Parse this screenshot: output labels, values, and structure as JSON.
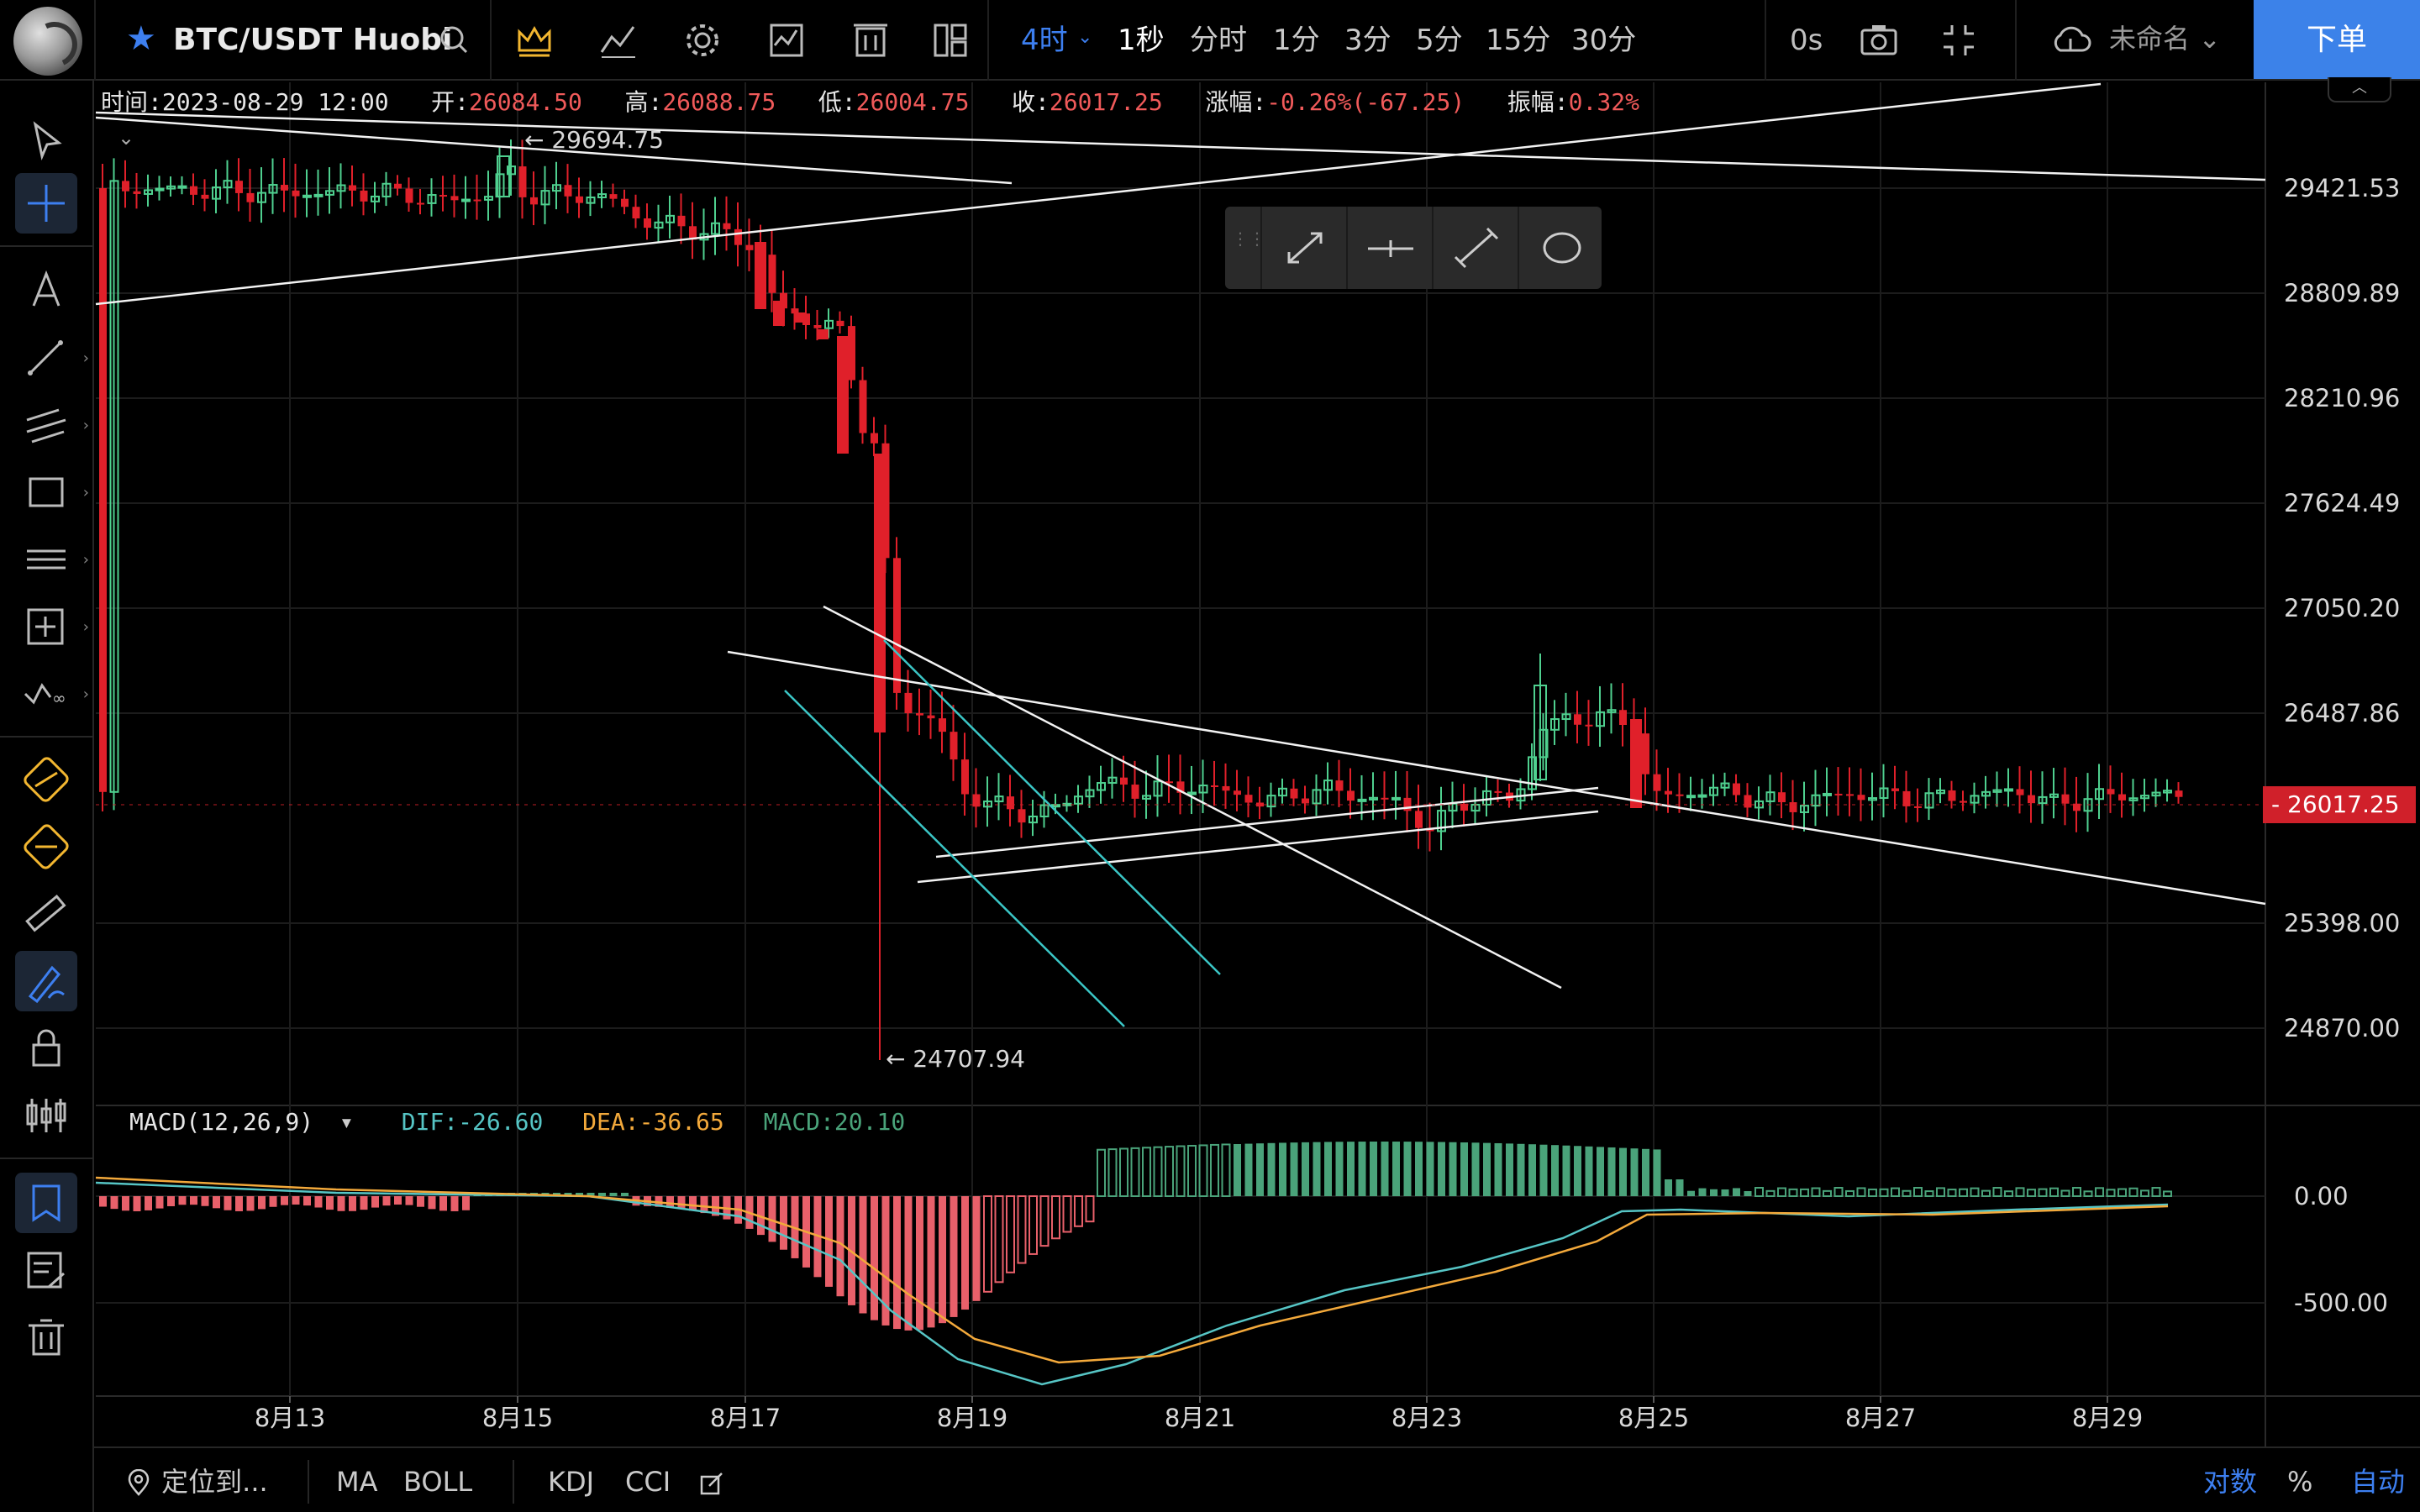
{
  "header": {
    "symbol": "BTC/USDT Huobi",
    "intervals": [
      {
        "label": "4时",
        "state": "active"
      },
      {
        "label": "1秒",
        "state": "bold"
      },
      {
        "label": "分时",
        "state": ""
      },
      {
        "label": "1分",
        "state": ""
      },
      {
        "label": "3分",
        "state": ""
      },
      {
        "label": "5分",
        "state": ""
      },
      {
        "label": "15分",
        "state": ""
      },
      {
        "label": "30分",
        "state": ""
      }
    ],
    "seconds_counter": "0s",
    "layout_name": "未命名",
    "order_button": "下单",
    "accent_color": "#3c82e9"
  },
  "info": {
    "time_label": "时间:",
    "time": "2023-08-29 12:00",
    "open_label": "开:",
    "open": "26084.50",
    "high_label": "高:",
    "high": "26088.75",
    "low_label": "低:",
    "low": "26004.75",
    "close_label": "收:",
    "close": "26017.25",
    "change_label": "涨幅:",
    "change": "-0.26%(-67.25)",
    "amp_label": "振幅:",
    "amp": "0.32%"
  },
  "annotations": {
    "high_marker": "29694.75",
    "low_marker": "24707.94"
  },
  "price_axis": {
    "labels": [
      "29421.53",
      "28809.89",
      "28210.96",
      "27624.49",
      "27050.20",
      "26487.86",
      "25398.00",
      "24870.00"
    ],
    "current_price": "26017.25",
    "current_color": "#d0202a"
  },
  "date_axis": {
    "labels": [
      "8月13",
      "8月15",
      "8月17",
      "8月19",
      "8月21",
      "8月23",
      "8月25",
      "8月27",
      "8月29"
    ]
  },
  "macd": {
    "name": "MACD(12,26,9)",
    "dif": "DIF:-26.60",
    "dea": "DEA:-36.65",
    "macd": "MACD:20.10",
    "axis_labels": [
      "0.00",
      "-500.00"
    ]
  },
  "bottom": {
    "locate": "定位到...",
    "ma": "MA",
    "boll": "BOLL",
    "kdj": "KDJ",
    "cci": "CCI",
    "log": "对数",
    "percent": "%",
    "auto": "自动"
  },
  "icons": {
    "search": "search-icon",
    "crown": "crown-icon",
    "indicators": "indicators-icon",
    "settings": "gear-icon",
    "chart-type": "chart-type-icon",
    "template": "template-icon",
    "layout": "layout-icon",
    "camera": "camera-icon",
    "fullscreen": "fullscreen-icon",
    "cloud": "cloud-icon"
  },
  "chart_data": {
    "type": "candlestick",
    "title": "BTC/USDT Huobi 4时",
    "x_label": "",
    "y_label": "",
    "x_ticks": [
      "8月13",
      "8月15",
      "8月17",
      "8月19",
      "8月21",
      "8月23",
      "8月25",
      "8月27",
      "8月29"
    ],
    "y_ticks": [
      29421.53,
      28809.89,
      28210.96,
      27624.49,
      27050.2,
      26487.86,
      25398.0,
      24870.0
    ],
    "visible_high": 29694.75,
    "visible_low": 24707.94,
    "last_price": 26017.25,
    "series": [
      {
        "name": "Close (approx. segments)",
        "values": [
          29300,
          29300,
          29280,
          29250,
          29500,
          29350,
          29300,
          29050,
          29000,
          28800,
          28700,
          27600,
          26550,
          26150,
          26200,
          26100,
          26150,
          26050,
          26300,
          26050,
          26650,
          26100,
          26100,
          26050,
          26080,
          26050,
          26017
        ]
      },
      {
        "name": "MACD DIF (approx.)",
        "values": [
          0,
          0,
          -10,
          -30,
          -120,
          -400,
          -680,
          -740,
          -600,
          -420,
          -300,
          -150,
          0,
          -30,
          -40,
          -27
        ]
      },
      {
        "name": "MACD DEA (approx.)",
        "values": [
          0,
          0,
          -5,
          -20,
          -80,
          -300,
          -600,
          -650,
          -560,
          -440,
          -320,
          -200,
          -40,
          -40,
          -40,
          -37
        ]
      }
    ]
  }
}
